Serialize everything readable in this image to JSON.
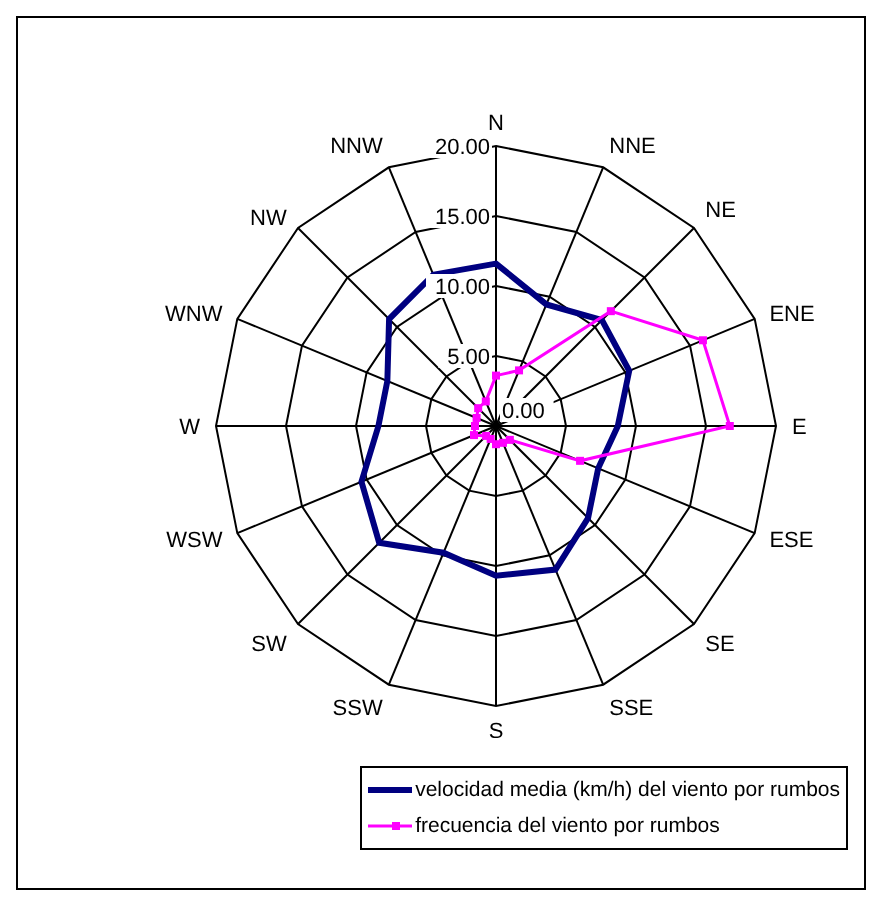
{
  "chart_data": {
    "type": "radar",
    "categories": [
      "N",
      "NNE",
      "NE",
      "ENE",
      "E",
      "ESE",
      "SE",
      "SSE",
      "S",
      "SSW",
      "SW",
      "WSW",
      "W",
      "WNW",
      "NW",
      "NNW"
    ],
    "ylim": [
      0,
      20
    ],
    "yticks": [
      {
        "value": 0,
        "label": "0.00"
      },
      {
        "value": 5,
        "label": "5.00"
      },
      {
        "value": 10,
        "label": "10.00"
      },
      {
        "value": 15,
        "label": "15.00"
      },
      {
        "value": 20,
        "label": "20.00"
      }
    ],
    "grid": true,
    "legend": "bottom right",
    "series": [
      {
        "name": "velocidad media (km/h) del viento por rumbos",
        "color": "#000080",
        "marker": "none",
        "values": [
          11.6,
          9.4,
          10.7,
          10.3,
          8.7,
          7.9,
          9.3,
          11.1,
          10.7,
          9.8,
          11.8,
          10.4,
          8.4,
          8.4,
          10.8,
          11.7
        ]
      },
      {
        "name": "frecuencia del viento por rumbos",
        "color": "#ff00ff",
        "marker": "square",
        "values": [
          3.6,
          4.3,
          11.6,
          16,
          16.7,
          6.5,
          1.4,
          1.3,
          1.3,
          1,
          1,
          1.7,
          1.5,
          1.5,
          1.8,
          1.9
        ]
      }
    ]
  }
}
